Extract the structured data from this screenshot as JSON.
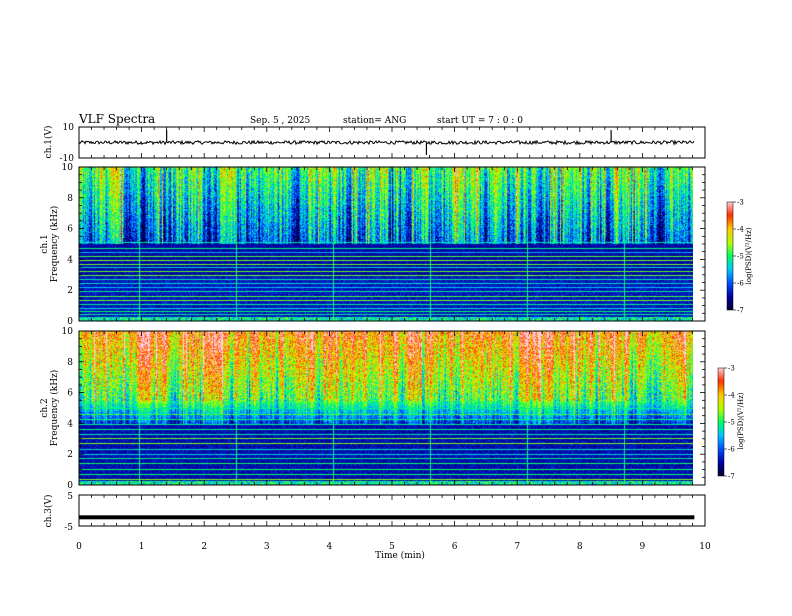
{
  "header": {
    "title": "VLF Spectra",
    "date": "Sep. 5 , 2025",
    "station": "station= ANG",
    "start": "start UT = 7 : 0 : 0"
  },
  "chart_data": [
    {
      "type": "line",
      "ylabel": "ch.1(V)",
      "ylim": [
        -10,
        10
      ],
      "yticks": [
        "10",
        "-10"
      ],
      "xlim": [
        0,
        10
      ],
      "baseline": 0,
      "spikes_min": [
        1.4,
        5.55,
        8.5
      ]
    },
    {
      "type": "heatmap",
      "ylabel": "ch.1",
      "ylabel2": "Frequency (kHz)",
      "ylim": [
        0,
        10
      ],
      "yticks": [
        "0",
        "2",
        "4",
        "6",
        "8",
        "10"
      ],
      "xlim": [
        0,
        9.83
      ],
      "colorbar": {
        "label": "log(PSD)(V²/Hz)",
        "ticks": [
          "-3",
          "-4",
          "-5",
          "-6",
          "-7"
        ],
        "range": [
          -7,
          -3
        ]
      }
    },
    {
      "type": "heatmap",
      "ylabel": "ch.2",
      "ylabel2": "Frequency (kHz)",
      "ylim": [
        0,
        10
      ],
      "yticks": [
        "0",
        "2",
        "4",
        "6",
        "8",
        "10"
      ],
      "xlim": [
        0,
        9.83
      ],
      "colorbar": {
        "label": "log(PSD)(V²/Hz)",
        "ticks": [
          "-3",
          "-4",
          "-5",
          "-6",
          "-7"
        ],
        "range": [
          -7,
          -3
        ]
      }
    },
    {
      "type": "line",
      "ylabel": "ch.3(V)",
      "ylim": [
        -5,
        5
      ],
      "yticks": [
        "5",
        "-5"
      ],
      "xlim": [
        0,
        10
      ],
      "baseline": -2.2
    }
  ],
  "xaxis": {
    "label": "Time (min)",
    "ticks": [
      "0",
      "1",
      "2",
      "3",
      "4",
      "5",
      "6",
      "7",
      "8",
      "9",
      "10"
    ]
  }
}
